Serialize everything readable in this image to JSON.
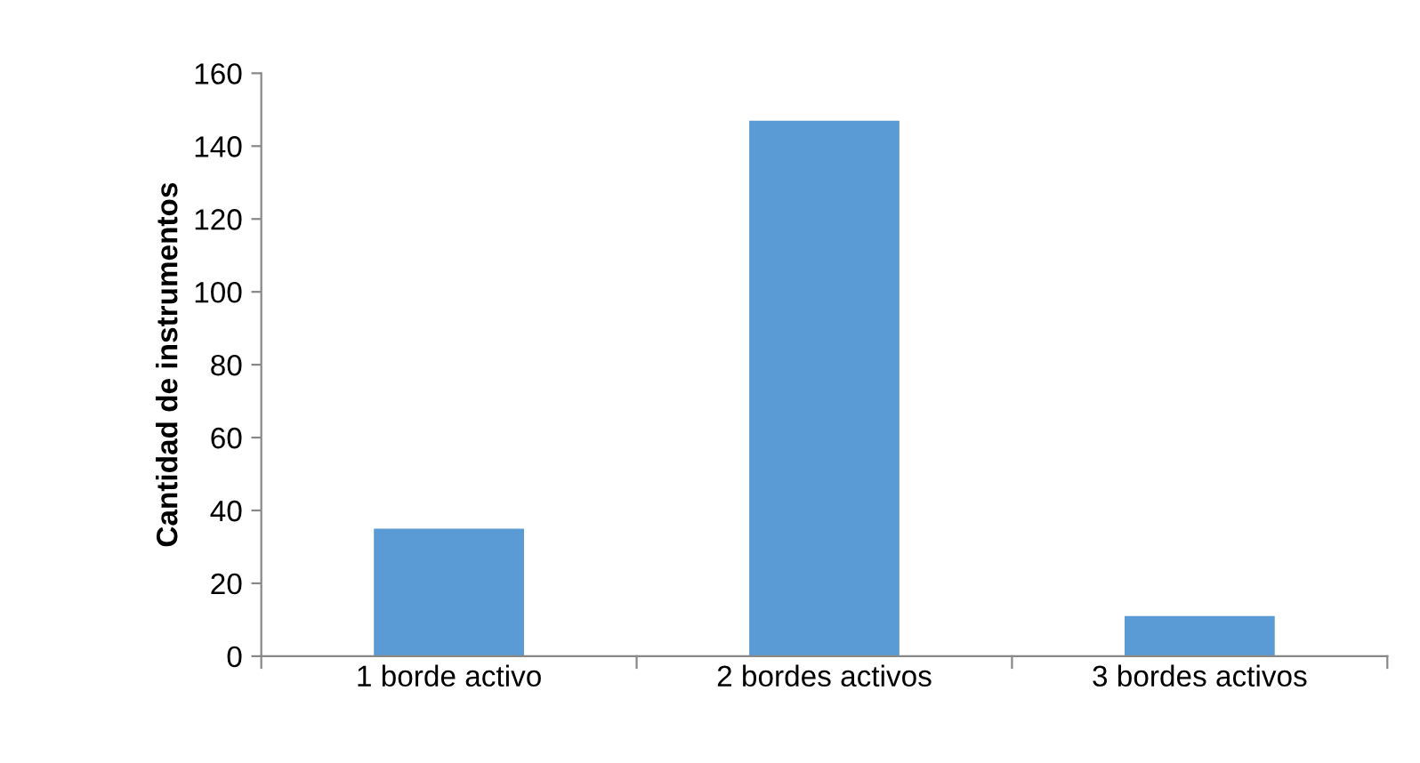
{
  "chart_data": {
    "type": "bar",
    "ylabel": "Cantidad de instrumentos",
    "categories": [
      "1 borde activo",
      "2 bordes activos",
      "3 bordes activos"
    ],
    "values": [
      35,
      147,
      11
    ],
    "color": "#5b9bd5",
    "ylim": [
      0,
      160
    ],
    "yticks": [
      0,
      20,
      40,
      60,
      80,
      100,
      120,
      140,
      160
    ],
    "grid": false,
    "legend": false
  }
}
